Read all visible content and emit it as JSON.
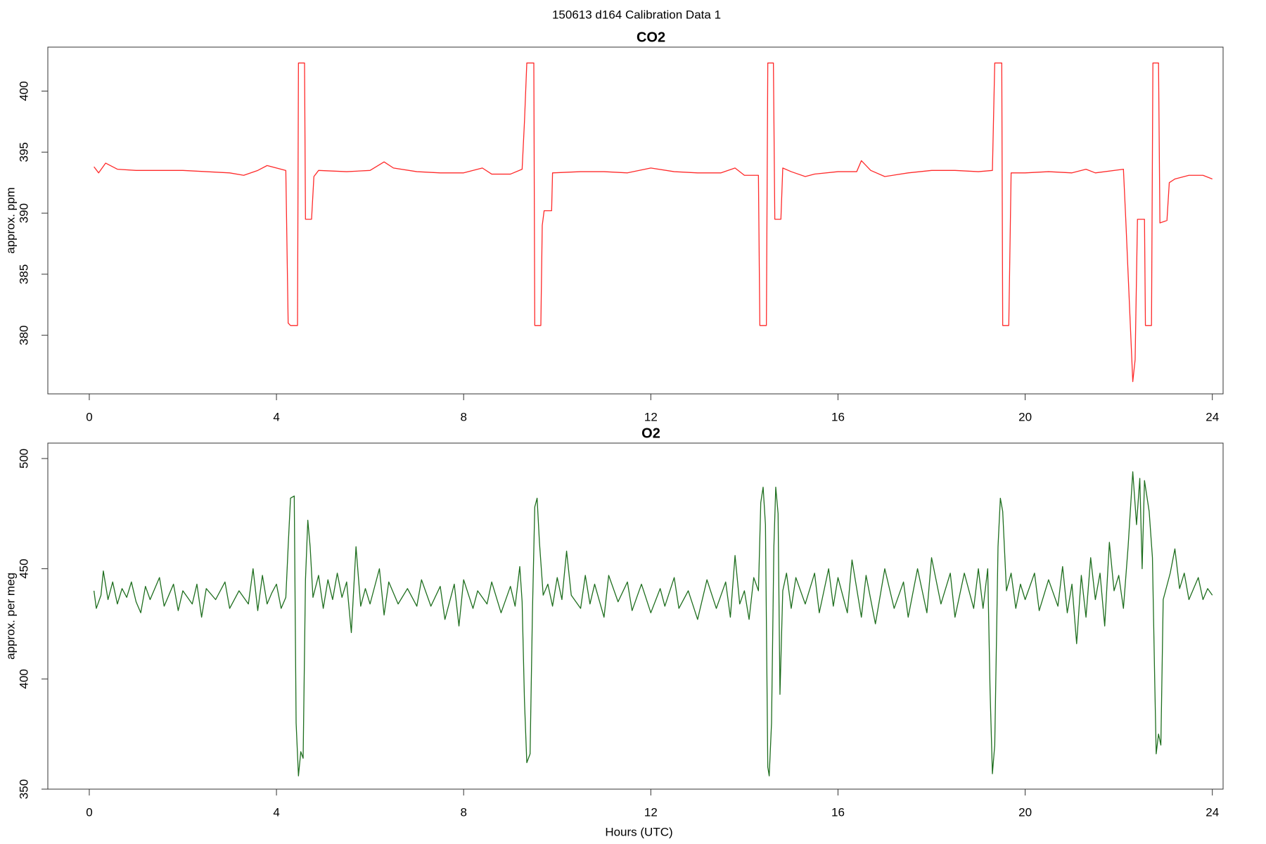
{
  "page_title": "150613   d164   Calibration Data 1",
  "chart_data": [
    {
      "type": "line",
      "title": "CO2",
      "ylabel": "approx. ppm",
      "xlim": [
        -0.886,
        24.23
      ],
      "xticks": [
        0,
        4,
        8,
        12,
        16,
        20,
        24
      ],
      "ylim": [
        375.2,
        403.6
      ],
      "yticks": [
        380,
        385,
        390,
        395,
        400
      ],
      "x": [
        0.1,
        0.2,
        0.35,
        0.6,
        1,
        1.5,
        2,
        2.5,
        3,
        3.3,
        3.6,
        3.8,
        4.2,
        4.25,
        4.3,
        4.45,
        4.47,
        4.6,
        4.62,
        4.75,
        4.8,
        4.9,
        5.5,
        6,
        6.3,
        6.5,
        7,
        7.5,
        8,
        8.4,
        8.6,
        9,
        9.25,
        9.3,
        9.35,
        9.5,
        9.52,
        9.65,
        9.68,
        9.72,
        9.88,
        9.9,
        10.5,
        11,
        11.5,
        12,
        12.5,
        13,
        13.5,
        13.8,
        14,
        14.3,
        14.33,
        14.47,
        14.5,
        14.62,
        14.65,
        14.78,
        14.82,
        15,
        15.3,
        15.5,
        16,
        16.4,
        16.5,
        16.7,
        17,
        17.5,
        18,
        18.5,
        19,
        19.3,
        19.35,
        19.5,
        19.52,
        19.65,
        19.7,
        20,
        20.5,
        21,
        21.3,
        21.5,
        22.1,
        22.15,
        22.3,
        22.35,
        22.4,
        22.55,
        22.57,
        22.7,
        22.73,
        22.85,
        22.88,
        23.03,
        23.08,
        23.2,
        23.5,
        23.8,
        24
      ],
      "series": [
        {
          "color": "#ff2a2a",
          "values": [
            393.8,
            393.3,
            394.1,
            393.6,
            393.5,
            393.5,
            393.5,
            393.4,
            393.3,
            393.1,
            393.5,
            393.9,
            393.5,
            381,
            380.8,
            380.8,
            402.3,
            402.3,
            389.5,
            389.5,
            393,
            393.5,
            393.4,
            393.5,
            394.2,
            393.7,
            393.4,
            393.3,
            393.3,
            393.7,
            393.2,
            393.2,
            393.6,
            397.5,
            402.3,
            402.3,
            380.8,
            380.8,
            389,
            390.2,
            390.2,
            393.3,
            393.4,
            393.4,
            393.3,
            393.7,
            393.4,
            393.3,
            393.3,
            393.7,
            393.1,
            393.1,
            380.8,
            380.8,
            402.3,
            402.3,
            389.5,
            389.5,
            393.7,
            393.4,
            393,
            393.2,
            393.4,
            393.4,
            394.3,
            393.5,
            393,
            393.3,
            393.5,
            393.5,
            393.4,
            393.5,
            402.3,
            402.3,
            380.8,
            380.8,
            393.3,
            393.3,
            393.4,
            393.3,
            393.6,
            393.3,
            393.6,
            389.5,
            376.2,
            378,
            389.5,
            389.5,
            380.8,
            380.8,
            402.3,
            402.3,
            389.2,
            389.4,
            392.5,
            392.8,
            393.1,
            393.1,
            392.8
          ]
        }
      ]
    },
    {
      "type": "line",
      "title": "O2",
      "ylabel": "approx. per meg",
      "xlabel": "Hours (UTC)",
      "xlim": [
        -0.886,
        24.23
      ],
      "xticks": [
        0,
        4,
        8,
        12,
        16,
        20,
        24
      ],
      "ylim": [
        350,
        507
      ],
      "yticks": [
        350,
        400,
        450,
        500
      ],
      "x": [
        0.1,
        0.15,
        0.25,
        0.3,
        0.4,
        0.5,
        0.6,
        0.7,
        0.8,
        0.9,
        1.0,
        1.1,
        1.2,
        1.3,
        1.5,
        1.6,
        1.8,
        1.9,
        2.0,
        2.2,
        2.3,
        2.4,
        2.5,
        2.7,
        2.9,
        3.0,
        3.2,
        3.4,
        3.5,
        3.6,
        3.7,
        3.8,
        3.9,
        4.0,
        4.1,
        4.2,
        4.25,
        4.3,
        4.38,
        4.42,
        4.47,
        4.52,
        4.57,
        4.62,
        4.67,
        4.72,
        4.78,
        4.9,
        5.0,
        5.1,
        5.2,
        5.3,
        5.4,
        5.5,
        5.6,
        5.7,
        5.8,
        5.9,
        6.0,
        6.2,
        6.3,
        6.4,
        6.6,
        6.8,
        7.0,
        7.1,
        7.3,
        7.5,
        7.6,
        7.8,
        7.9,
        8.0,
        8.2,
        8.3,
        8.5,
        8.6,
        8.8,
        9.0,
        9.1,
        9.2,
        9.25,
        9.3,
        9.35,
        9.42,
        9.47,
        9.52,
        9.57,
        9.62,
        9.7,
        9.8,
        9.9,
        10.0,
        10.1,
        10.2,
        10.3,
        10.5,
        10.6,
        10.7,
        10.8,
        11.0,
        11.1,
        11.3,
        11.5,
        11.6,
        11.8,
        12.0,
        12.2,
        12.3,
        12.5,
        12.6,
        12.8,
        13.0,
        13.2,
        13.4,
        13.6,
        13.7,
        13.8,
        13.9,
        14.0,
        14.1,
        14.2,
        14.3,
        14.35,
        14.4,
        14.45,
        14.5,
        14.53,
        14.58,
        14.63,
        14.67,
        14.72,
        14.76,
        14.82,
        14.9,
        15.0,
        15.1,
        15.3,
        15.5,
        15.6,
        15.8,
        15.9,
        16.0,
        16.2,
        16.3,
        16.5,
        16.6,
        16.8,
        17.0,
        17.2,
        17.4,
        17.5,
        17.7,
        17.9,
        18.0,
        18.2,
        18.4,
        18.5,
        18.7,
        18.9,
        19.0,
        19.1,
        19.2,
        19.25,
        19.3,
        19.35,
        19.42,
        19.47,
        19.52,
        19.6,
        19.7,
        19.8,
        19.9,
        20.0,
        20.2,
        20.3,
        20.5,
        20.7,
        20.8,
        20.9,
        21.0,
        21.1,
        21.2,
        21.3,
        21.4,
        21.5,
        21.6,
        21.7,
        21.8,
        21.9,
        22.0,
        22.1,
        22.2,
        22.3,
        22.38,
        22.45,
        22.5,
        22.55,
        22.65,
        22.72,
        22.77,
        22.8,
        22.85,
        22.9,
        22.95,
        23.1,
        23.2,
        23.3,
        23.4,
        23.5,
        23.7,
        23.8,
        23.9,
        24.0
      ],
      "series": [
        {
          "color": "#1e6e1e",
          "values": [
            440,
            432,
            438,
            449,
            436,
            444,
            434,
            441,
            437,
            444,
            435,
            430,
            442,
            436,
            446,
            433,
            443,
            431,
            440,
            434,
            443,
            428,
            441,
            436,
            444,
            432,
            440,
            434,
            450,
            431,
            447,
            434,
            439,
            443,
            432,
            437,
            460,
            482,
            483,
            380,
            356,
            367,
            364,
            445,
            472,
            460,
            437,
            447,
            432,
            445,
            436,
            448,
            437,
            444,
            421,
            460,
            433,
            441,
            434,
            450,
            429,
            444,
            434,
            441,
            433,
            445,
            433,
            442,
            427,
            443,
            424,
            445,
            432,
            440,
            434,
            444,
            430,
            442,
            433,
            451,
            435,
            390,
            362,
            366,
            430,
            478,
            482,
            462,
            438,
            443,
            433,
            446,
            436,
            458,
            438,
            432,
            447,
            434,
            443,
            428,
            447,
            435,
            444,
            431,
            443,
            430,
            441,
            433,
            446,
            432,
            440,
            427,
            445,
            432,
            444,
            428,
            456,
            434,
            440,
            427,
            446,
            440,
            480,
            487,
            470,
            360,
            356,
            380,
            460,
            487,
            475,
            393,
            440,
            448,
            432,
            446,
            434,
            448,
            430,
            450,
            433,
            446,
            430,
            454,
            428,
            447,
            425,
            450,
            432,
            444,
            428,
            450,
            430,
            455,
            434,
            448,
            428,
            448,
            432,
            450,
            432,
            450,
            395,
            357,
            370,
            460,
            482,
            476,
            440,
            448,
            432,
            443,
            436,
            448,
            431,
            445,
            433,
            451,
            430,
            443,
            416,
            447,
            428,
            455,
            436,
            448,
            424,
            462,
            440,
            447,
            432,
            460,
            494,
            470,
            491,
            450,
            490,
            476,
            455,
            398,
            366,
            375,
            370,
            436,
            448,
            459,
            441,
            448,
            436,
            446,
            436,
            441,
            438
          ]
        }
      ]
    }
  ]
}
